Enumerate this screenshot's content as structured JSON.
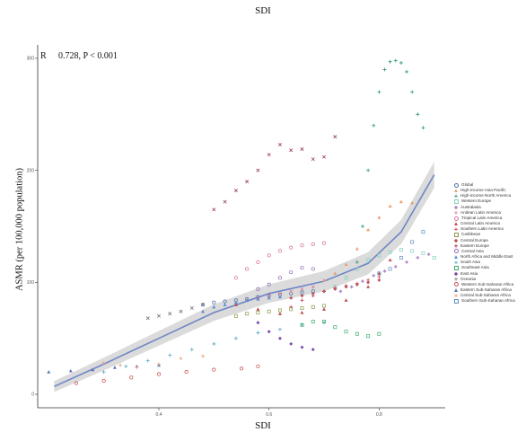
{
  "header": {
    "top_title": "SDI"
  },
  "annotation": {
    "r_label": "R",
    "r_value": "0.728, P < 0.001"
  },
  "chart_data": {
    "type": "scatter",
    "xlabel": "SDI",
    "ylabel": "ASMR (per 100,000 population)",
    "xlim": [
      0.18,
      0.92
    ],
    "ylim": [
      -12,
      312
    ],
    "x_ticks": [
      0.4,
      0.6,
      0.8
    ],
    "y_ticks": [
      0,
      100,
      200,
      300
    ],
    "legend_position": "right",
    "trend": {
      "type": "smoothed fit with confidence band",
      "x": [
        0.21,
        0.3,
        0.4,
        0.5,
        0.6,
        0.7,
        0.78,
        0.84,
        0.9
      ],
      "y": [
        7,
        27,
        50,
        73,
        90,
        101,
        117,
        145,
        196
      ],
      "band": 7
    },
    "series": [
      {
        "name": "Global",
        "color": "#4a6fa5",
        "x": [
          0.48,
          0.5,
          0.52,
          0.54,
          0.56,
          0.58,
          0.6,
          0.62,
          0.64,
          0.66,
          0.68
        ],
        "y": [
          80,
          82,
          83,
          84,
          85,
          87,
          88,
          89,
          90,
          91,
          92
        ]
      },
      {
        "name": "High-income Asia Pacific",
        "color": "#e8a070",
        "x": [
          0.7,
          0.72,
          0.74,
          0.76,
          0.78,
          0.8,
          0.82,
          0.84,
          0.86
        ],
        "y": [
          102,
          108,
          116,
          130,
          147,
          158,
          168,
          172,
          171
        ]
      },
      {
        "name": "High-income North America",
        "color": "#2e9a6a",
        "x": [
          0.76,
          0.77,
          0.78,
          0.79,
          0.8,
          0.81,
          0.82,
          0.83,
          0.84,
          0.85,
          0.86,
          0.87,
          0.88
        ],
        "y": [
          118,
          150,
          200,
          240,
          270,
          290,
          297,
          298,
          296,
          288,
          270,
          250,
          238
        ]
      },
      {
        "name": "Western Europe",
        "color": "#7fd0c0",
        "x": [
          0.72,
          0.74,
          0.76,
          0.78,
          0.8,
          0.82,
          0.84,
          0.86,
          0.88,
          0.9
        ],
        "y": [
          96,
          104,
          112,
          120,
          124,
          127,
          129,
          128,
          126,
          122
        ]
      },
      {
        "name": "Australasia",
        "color": "#b58fc9",
        "x": [
          0.73,
          0.75,
          0.77,
          0.79,
          0.81,
          0.83,
          0.85,
          0.87,
          0.89
        ],
        "y": [
          92,
          96,
          101,
          106,
          110,
          114,
          118,
          122,
          125
        ]
      },
      {
        "name": "Andean Latin America",
        "color": "#e07aa0",
        "x": [
          0.54,
          0.56,
          0.58,
          0.6,
          0.62,
          0.64,
          0.66,
          0.68
        ],
        "y": [
          80,
          84,
          86,
          88,
          90,
          92,
          94,
          96
        ]
      },
      {
        "name": "Tropical Latin America",
        "color": "#d86f9f",
        "x": [
          0.54,
          0.56,
          0.58,
          0.6,
          0.62,
          0.64,
          0.66,
          0.68,
          0.7
        ],
        "y": [
          104,
          112,
          118,
          124,
          128,
          131,
          133,
          134,
          135
        ]
      },
      {
        "name": "Central Latin America",
        "color": "#c05050",
        "x": [
          0.54,
          0.58,
          0.62,
          0.66,
          0.7,
          0.74,
          0.78,
          0.8,
          0.82
        ],
        "y": [
          80,
          76,
          72,
          73,
          76,
          84,
          96,
          108,
          120
        ]
      },
      {
        "name": "Southern Latin America",
        "color": "#c84a5a",
        "x": [
          0.64,
          0.66,
          0.68,
          0.7,
          0.72,
          0.74,
          0.76,
          0.78,
          0.8
        ],
        "y": [
          78,
          84,
          88,
          92,
          95,
          97,
          99,
          102,
          105
        ]
      },
      {
        "name": "Caribbean",
        "color": "#8a9a4a",
        "x": [
          0.54,
          0.56,
          0.58,
          0.6,
          0.62,
          0.64,
          0.66,
          0.68,
          0.7
        ],
        "y": [
          70,
          72,
          73,
          74,
          75,
          76,
          77,
          78,
          79
        ]
      },
      {
        "name": "Central Europe",
        "color": "#b5565a",
        "x": [
          0.64,
          0.66,
          0.68,
          0.7,
          0.72,
          0.74,
          0.76,
          0.78,
          0.8
        ],
        "y": [
          86,
          88,
          90,
          92,
          94,
          96,
          98,
          100,
          102
        ]
      },
      {
        "name": "Eastern Europe",
        "color": "#9b3c52",
        "x": [
          0.5,
          0.52,
          0.54,
          0.56,
          0.58,
          0.6,
          0.62,
          0.64,
          0.66,
          0.68,
          0.7,
          0.72
        ],
        "y": [
          165,
          172,
          182,
          190,
          200,
          214,
          223,
          218,
          219,
          210,
          212,
          230
        ]
      },
      {
        "name": "Central Asia",
        "color": "#8f6bb3",
        "x": [
          0.58,
          0.6,
          0.62,
          0.64,
          0.66,
          0.68
        ],
        "y": [
          94,
          98,
          104,
          109,
          113,
          112
        ]
      },
      {
        "name": "North Africa and Middle East",
        "color": "#5a8fd0",
        "x": [
          0.48,
          0.5,
          0.52,
          0.54,
          0.56,
          0.58,
          0.6,
          0.62
        ],
        "y": [
          74,
          78,
          80,
          82,
          84,
          85,
          86,
          87
        ]
      },
      {
        "name": "South Asia",
        "color": "#55a8c8",
        "x": [
          0.3,
          0.34,
          0.38,
          0.42,
          0.46,
          0.5,
          0.54,
          0.58,
          0.62,
          0.66,
          0.7
        ],
        "y": [
          20,
          25,
          30,
          35,
          40,
          45,
          50,
          55,
          58,
          62,
          64
        ]
      },
      {
        "name": "Southeast Asia",
        "color": "#3faa6a",
        "x": [
          0.66,
          0.68,
          0.7,
          0.72,
          0.74,
          0.76,
          0.78,
          0.8
        ],
        "y": [
          62,
          65,
          65,
          60,
          56,
          54,
          52,
          54
        ]
      },
      {
        "name": "East Asia",
        "color": "#7a4fb0",
        "x": [
          0.58,
          0.6,
          0.62,
          0.64,
          0.66,
          0.68
        ],
        "y": [
          64,
          56,
          50,
          45,
          42,
          40
        ]
      },
      {
        "name": "Oceania",
        "color": "#777777",
        "x": [
          0.38,
          0.4,
          0.42,
          0.44,
          0.46,
          0.48
        ],
        "y": [
          68,
          70,
          72,
          74,
          77,
          80
        ]
      },
      {
        "name": "Western Sub-Saharan Africa",
        "color": "#c85050",
        "x": [
          0.25,
          0.3,
          0.35,
          0.4,
          0.45,
          0.5,
          0.55,
          0.58
        ],
        "y": [
          10,
          12,
          15,
          18,
          20,
          22,
          23,
          25
        ]
      },
      {
        "name": "Eastern Sub-Saharan Africa",
        "color": "#5a7ab5",
        "x": [
          0.2,
          0.24,
          0.28,
          0.32,
          0.36,
          0.4
        ],
        "y": [
          20,
          21,
          22,
          24,
          25,
          26
        ]
      },
      {
        "name": "Central Sub-Saharan Africa",
        "color": "#e8a070",
        "x": [
          0.3,
          0.33,
          0.36,
          0.4,
          0.44,
          0.48
        ],
        "y": [
          28,
          26,
          24,
          27,
          32,
          34
        ]
      },
      {
        "name": "Southern Sub-Saharan Africa",
        "color": "#5f8fc0",
        "x": [
          0.8,
          0.82,
          0.84,
          0.86,
          0.88
        ],
        "y": [
          108,
          112,
          122,
          136,
          145
        ]
      }
    ]
  }
}
